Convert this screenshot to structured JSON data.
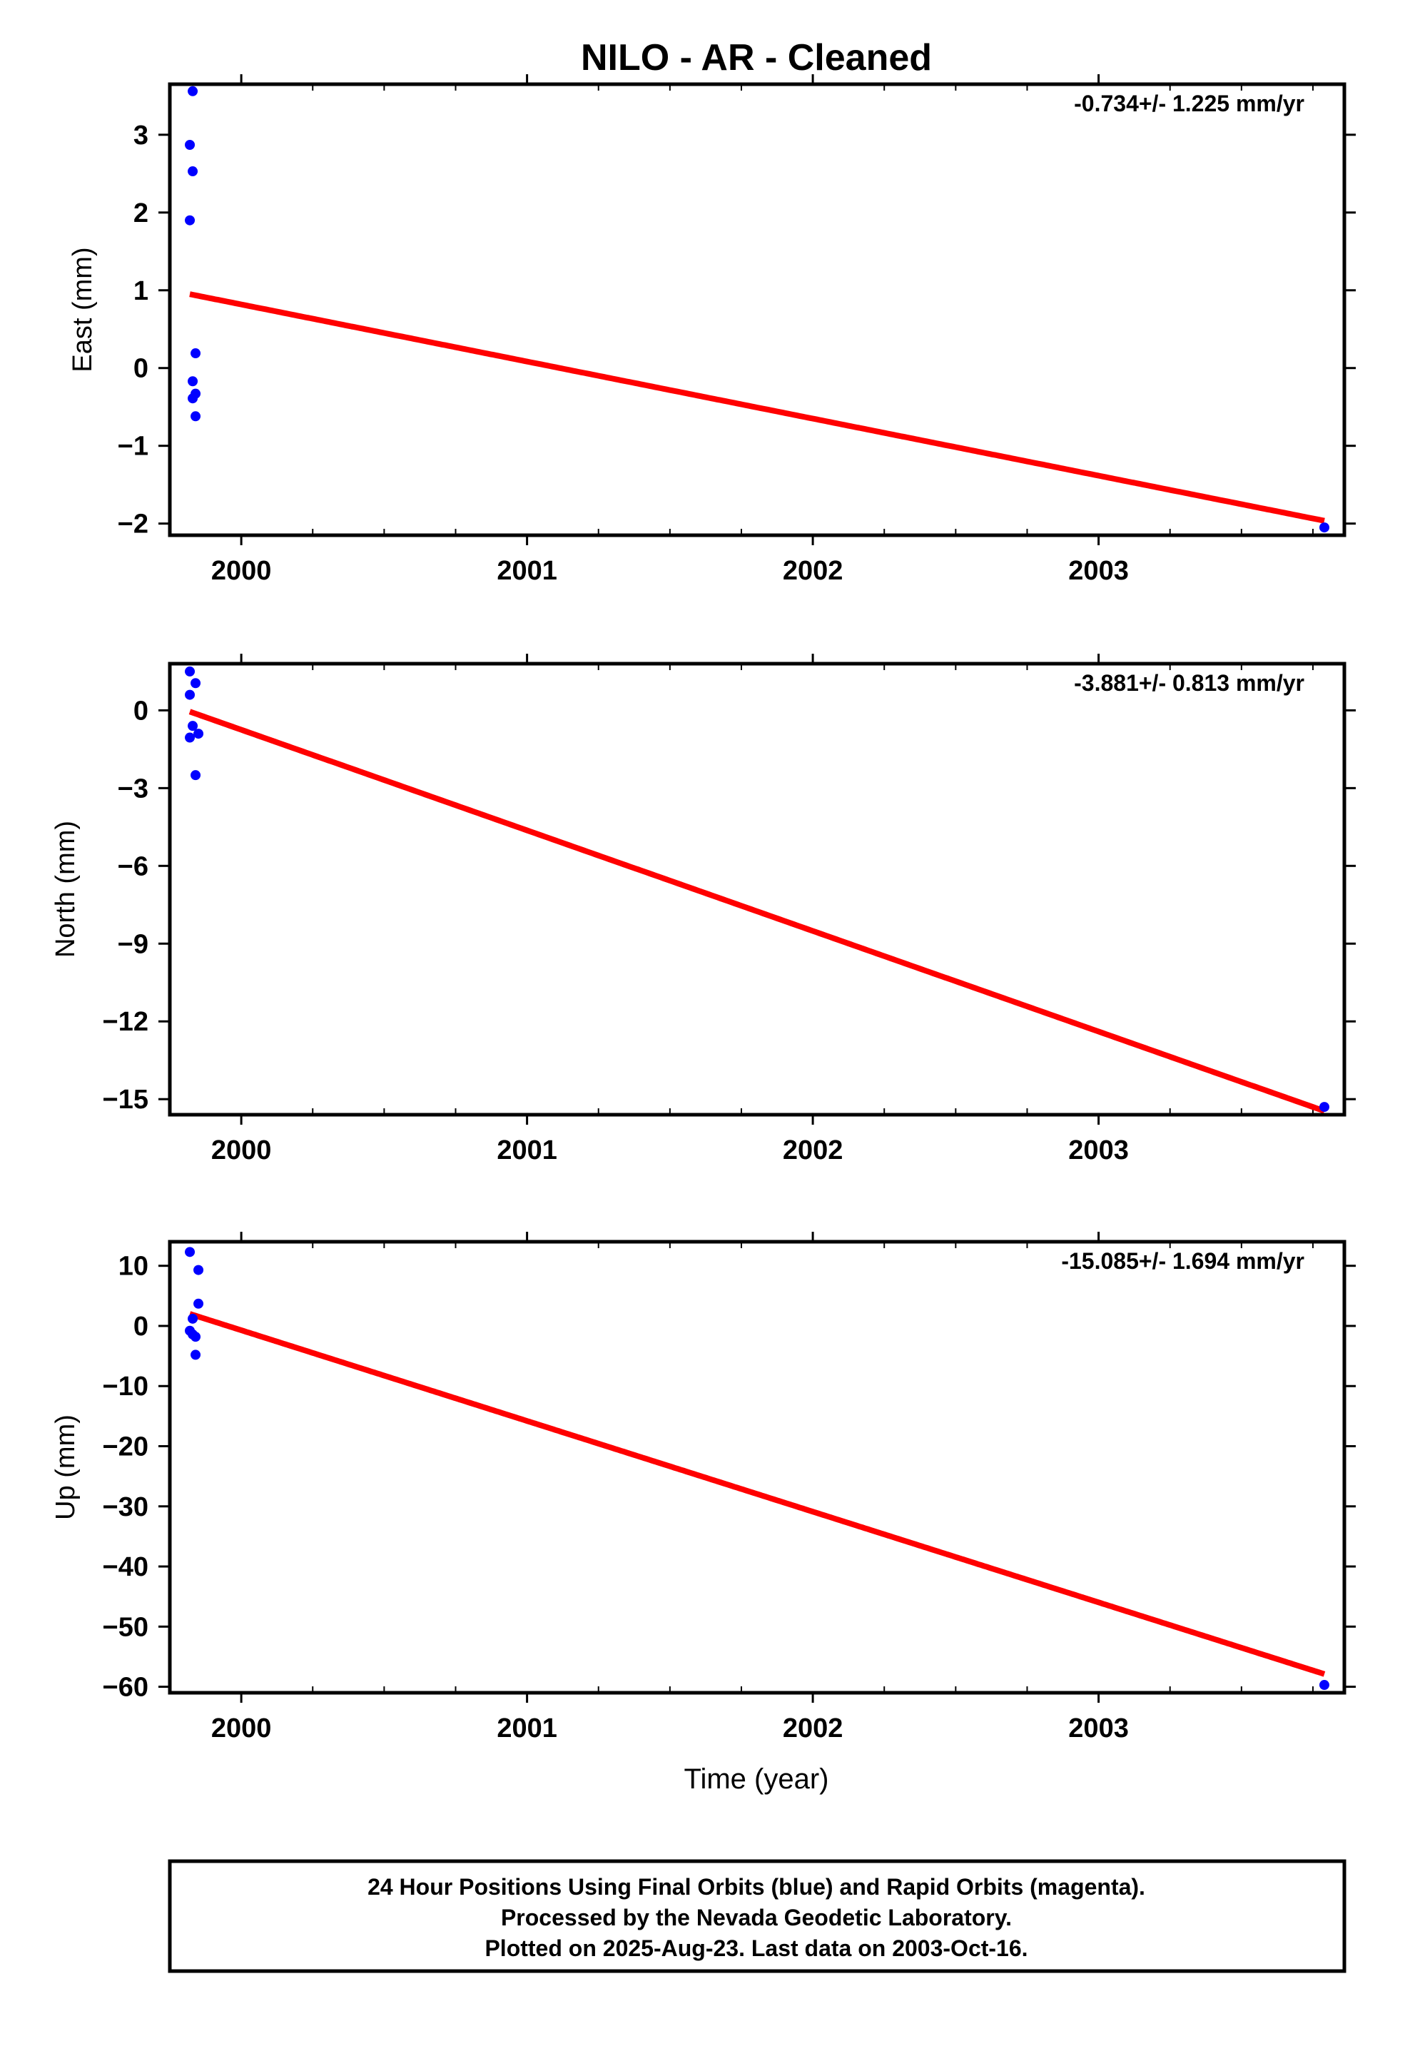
{
  "title": "NILO  - AR - Cleaned",
  "x_axis_label": "Time (year)",
  "footer_lines": [
    "24 Hour Positions Using Final Orbits (blue) and Rapid Orbits (magenta).",
    "Processed by the Nevada Geodetic Laboratory.",
    "Plotted on 2025-Aug-23. Last data on 2003-Oct-16."
  ],
  "colors": {
    "final_orbits": "#0000ff",
    "model_fit": "#ff0000",
    "frame": "#000000"
  },
  "chart_data": [
    {
      "type": "scatter",
      "ylabel": "East (mm)",
      "rate_label": "-0.734+/- 1.225 mm/yr",
      "xlim": [
        1999.75,
        2003.86
      ],
      "ylim": [
        -2.15,
        3.65
      ],
      "x_ticks": [
        2000,
        2001,
        2002,
        2003
      ],
      "x_tick_labels": [
        "2000",
        "2001",
        "2002",
        "2003"
      ],
      "y_ticks": [
        -2,
        -1,
        0,
        1,
        2,
        3
      ],
      "y_tick_labels": [
        "−2",
        "−1",
        "0",
        "1",
        "2",
        "3"
      ],
      "points": [
        [
          1999.83,
          3.56
        ],
        [
          1999.82,
          2.87
        ],
        [
          1999.83,
          2.53
        ],
        [
          1999.82,
          1.9
        ],
        [
          1999.84,
          0.19
        ],
        [
          1999.83,
          -0.17
        ],
        [
          1999.84,
          -0.33
        ],
        [
          1999.83,
          -0.39
        ],
        [
          1999.84,
          -0.62
        ],
        [
          2003.79,
          -2.05
        ]
      ],
      "model": {
        "start": 1999.82,
        "end": 2003.79,
        "base": 0.95,
        "rate": -0.734,
        "annual_sin": 0.0,
        "annual_cos": 0.0,
        "semi_sin": 0.0,
        "semi_cos": 0.0
      }
    },
    {
      "type": "scatter",
      "ylabel": "North (mm)",
      "rate_label": "-3.881+/- 0.813 mm/yr",
      "xlim": [
        1999.75,
        2003.86
      ],
      "ylim": [
        -15.6,
        1.8
      ],
      "x_ticks": [
        2000,
        2001,
        2002,
        2003
      ],
      "x_tick_labels": [
        "2000",
        "2001",
        "2002",
        "2003"
      ],
      "y_ticks": [
        -15,
        -12,
        -9,
        -6,
        -3,
        0
      ],
      "y_tick_labels": [
        "−15",
        "−12",
        "−9",
        "−6",
        "−3",
        "0"
      ],
      "points": [
        [
          1999.82,
          1.5
        ],
        [
          1999.84,
          1.05
        ],
        [
          1999.82,
          0.6
        ],
        [
          1999.83,
          -0.6
        ],
        [
          1999.85,
          -0.9
        ],
        [
          1999.82,
          -1.05
        ],
        [
          1999.84,
          -2.5
        ],
        [
          2003.79,
          -15.3
        ]
      ],
      "model": {
        "start": 1999.82,
        "end": 2003.79,
        "base": -0.05,
        "rate": -3.881,
        "annual_sin": 0.0,
        "annual_cos": 0.0,
        "semi_sin": 0.0,
        "semi_cos": 0.0
      }
    },
    {
      "type": "scatter",
      "ylabel": "Up (mm)",
      "rate_label": "-15.085+/- 1.694 mm/yr",
      "xlim": [
        1999.75,
        2003.86
      ],
      "ylim": [
        -61,
        14
      ],
      "x_ticks": [
        2000,
        2001,
        2002,
        2003
      ],
      "x_tick_labels": [
        "2000",
        "2001",
        "2002",
        "2003"
      ],
      "y_ticks": [
        -60,
        -50,
        -40,
        -30,
        -20,
        -10,
        0,
        10
      ],
      "y_tick_labels": [
        "−60",
        "−50",
        "−40",
        "−30",
        "−20",
        "−10",
        "0",
        "10"
      ],
      "points": [
        [
          1999.82,
          12.3
        ],
        [
          1999.85,
          9.3
        ],
        [
          1999.85,
          3.7
        ],
        [
          1999.83,
          1.2
        ],
        [
          1999.82,
          -0.8
        ],
        [
          1999.83,
          -1.4
        ],
        [
          1999.84,
          -1.8
        ],
        [
          1999.84,
          -4.8
        ],
        [
          2003.79,
          -59.7
        ]
      ],
      "model": {
        "start": 1999.82,
        "end": 2003.79,
        "base": 2.0,
        "rate": -15.085,
        "annual_sin": 0.0,
        "annual_cos": 0.0,
        "semi_sin": 0.0,
        "semi_cos": 0.0
      }
    }
  ]
}
